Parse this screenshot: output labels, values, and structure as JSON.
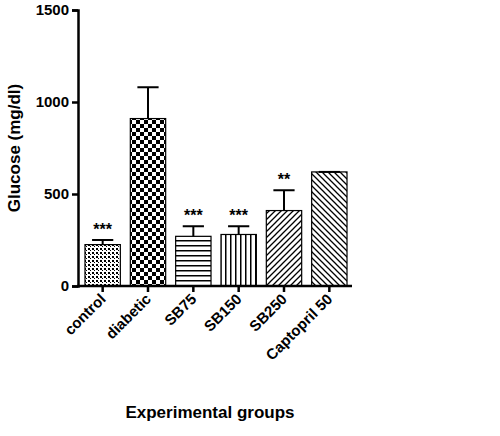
{
  "chart_data": {
    "type": "bar",
    "categories": [
      "control",
      "diabetic",
      "SB75",
      "SB150",
      "SB250",
      "Captopril 50"
    ],
    "values": [
      225,
      910,
      270,
      280,
      410,
      620
    ],
    "errors": [
      25,
      170,
      55,
      45,
      110,
      0
    ],
    "annotations": [
      "***",
      null,
      "***",
      "***",
      "**",
      null
    ],
    "x_label": "Experimental groups",
    "y_label": "Glucose (mg/dl)",
    "color": "#000000",
    "ylim": [
      0,
      1500
    ],
    "yticks": [
      0,
      500,
      1000,
      1500
    ],
    "grid": false
  }
}
